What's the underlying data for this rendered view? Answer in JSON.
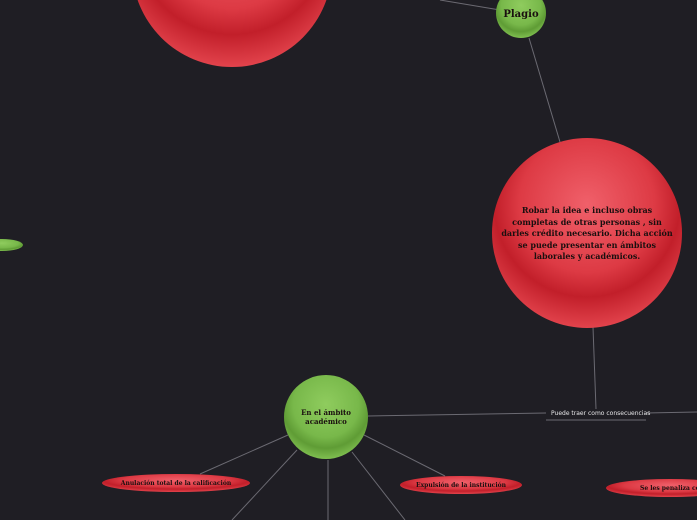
{
  "colors": {
    "background": "#1f1e24",
    "red_node": "#d9343d",
    "green_node": "#74b545",
    "edge": "#6b6a72"
  },
  "nodes": {
    "plagio": "Plagio",
    "definition": "Robar la idea e incluso  obras completas de otras personas  , sin  darles crédito necesario. Dicha acción se puede presentar en ámbitos laborales y académicos.",
    "ambito_academico": "En el ámbito académico",
    "anulacion": "Anulación total de la calificación",
    "expulsion": "Expulsión de la institución",
    "penaliza": "Se les penaliza co"
  },
  "edges": {
    "consecuencias": "Puede traer como consecuencias"
  }
}
